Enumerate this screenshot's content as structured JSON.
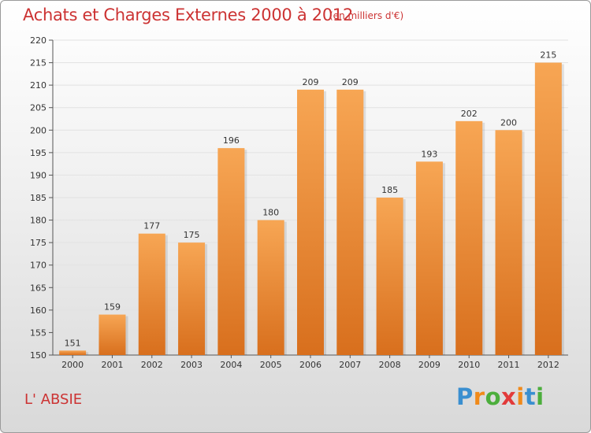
{
  "header": {
    "title": "Achats et Charges Externes 2000 à 2012",
    "subtitle": "(en milliers d'€)"
  },
  "footer": {
    "place": "L' ABSIE",
    "logo_letters": [
      "P",
      "r",
      "o",
      "x",
      "i",
      "t",
      "i"
    ]
  },
  "colors": {
    "bar_light": "#f7a654",
    "bar_dark": "#d86f1d",
    "title": "#cc3333"
  },
  "chart_data": {
    "type": "bar",
    "title": "Achats et Charges Externes 2000 à 2012",
    "subtitle": "(en milliers d'€)",
    "categories": [
      "2000",
      "2001",
      "2002",
      "2003",
      "2004",
      "2005",
      "2006",
      "2007",
      "2008",
      "2009",
      "2010",
      "2011",
      "2012"
    ],
    "values": [
      151,
      159,
      177,
      175,
      196,
      180,
      209,
      209,
      185,
      193,
      202,
      200,
      215
    ],
    "data_labels": [
      "151",
      "159",
      "177",
      "175",
      "196",
      "180",
      "209",
      "209",
      "185",
      "193",
      "202",
      "200",
      "215"
    ],
    "ylim": [
      150,
      220
    ],
    "yticks": [
      150,
      155,
      160,
      165,
      170,
      175,
      180,
      185,
      190,
      195,
      200,
      205,
      210,
      215,
      220
    ],
    "grid": true,
    "legend": "none"
  }
}
